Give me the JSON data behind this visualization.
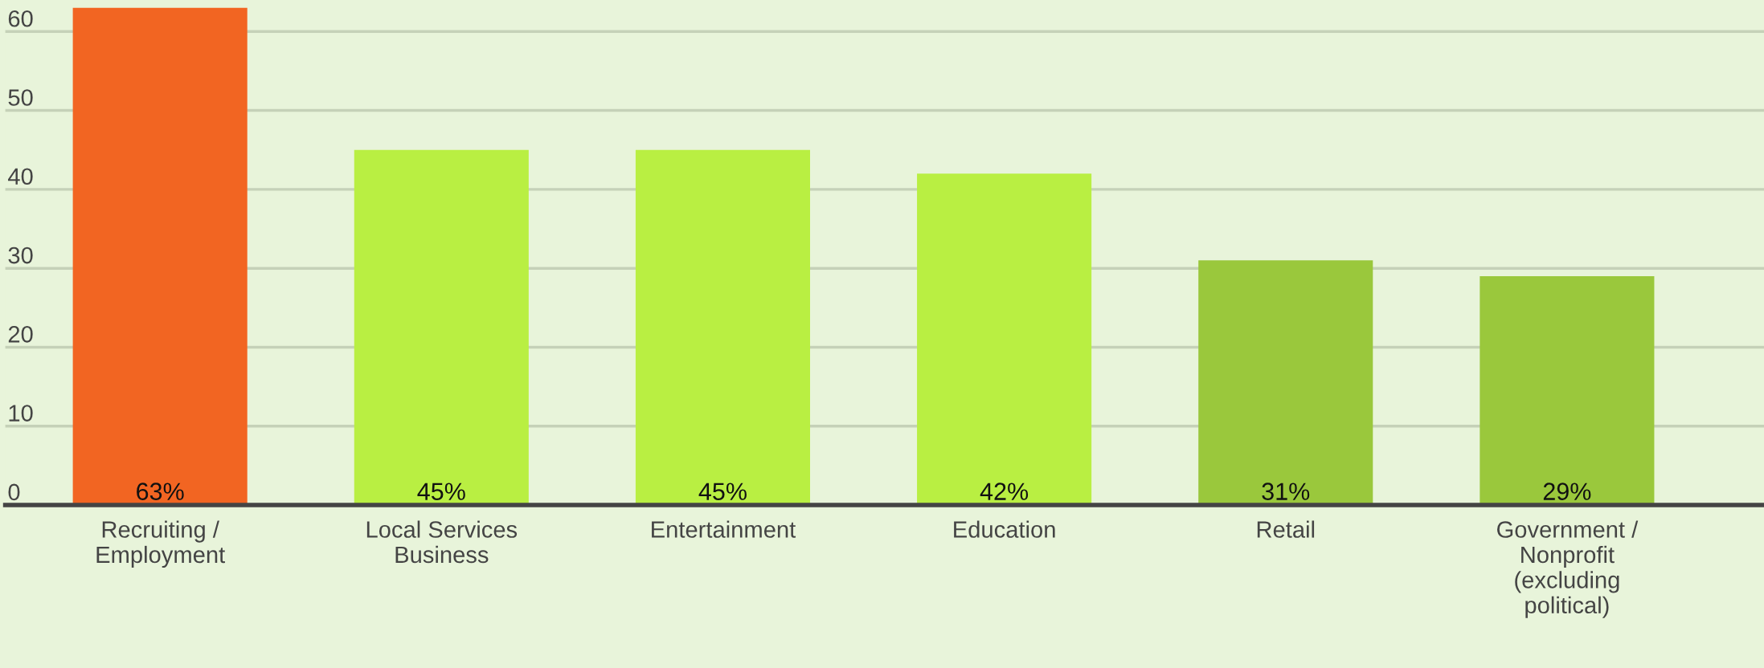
{
  "chart_data": {
    "type": "bar",
    "categories": [
      "Recruiting /\nEmployment",
      "Local Services\nBusiness",
      "Entertainment",
      "Education",
      "Retail",
      "Government /\nNonprofit\n(excluding\npolitical)"
    ],
    "values": [
      63,
      45,
      45,
      42,
      31,
      29
    ],
    "colors": [
      "#f26522",
      "#b9ef42",
      "#b9ef42",
      "#b9ef42",
      "#9ac83c",
      "#9ac83c"
    ],
    "value_labels": [
      "63%",
      "45%",
      "45%",
      "42%",
      "31%",
      "29%"
    ],
    "ylim": [
      0,
      64
    ],
    "yticks": [
      0,
      10,
      20,
      30,
      40,
      50,
      60
    ],
    "grid": "y",
    "legend": false
  }
}
